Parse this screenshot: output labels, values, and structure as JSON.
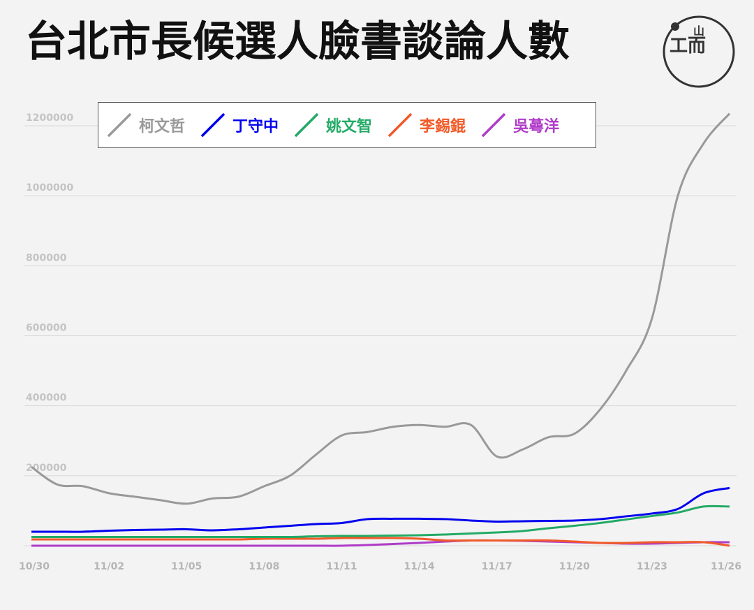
{
  "title": "台北市長候選人臉書談論人數",
  "logo": {
    "text_top": "山",
    "text_bottom": "工而",
    "icon": "initium-logo"
  },
  "chart_data": {
    "type": "line",
    "title": "台北市長候選人臉書談論人數",
    "xlabel": "",
    "ylabel": "",
    "ylim": [
      0,
      1200000
    ],
    "yticks": [
      200000,
      400000,
      600000,
      800000,
      1000000,
      1200000
    ],
    "ytick_labels": [
      "200000",
      "400000",
      "600000",
      "800000",
      "1000000",
      "1200000"
    ],
    "x": [
      "10/30",
      "10/31",
      "11/01",
      "11/02",
      "11/03",
      "11/04",
      "11/05",
      "11/06",
      "11/07",
      "11/08",
      "11/09",
      "11/10",
      "11/11",
      "11/12",
      "11/13",
      "11/14",
      "11/15",
      "11/16",
      "11/17",
      "11/18",
      "11/19",
      "11/20",
      "11/21",
      "11/22",
      "11/23",
      "11/24",
      "11/25",
      "11/26"
    ],
    "xtick_labels": [
      "10/30",
      "11/02",
      "11/05",
      "11/08",
      "11/11",
      "11/14",
      "11/17",
      "11/20",
      "11/23",
      "11/26"
    ],
    "grid": true,
    "legend_position": "top",
    "series": [
      {
        "name": "柯文哲",
        "color": "#999999",
        "values": [
          225000,
          175000,
          170000,
          150000,
          140000,
          130000,
          120000,
          135000,
          140000,
          170000,
          200000,
          260000,
          315000,
          325000,
          340000,
          345000,
          340000,
          345000,
          255000,
          275000,
          310000,
          320000,
          390000,
          500000,
          650000,
          1000000,
          1150000,
          1235000
        ]
      },
      {
        "name": "丁守中",
        "color": "#0000ee",
        "values": [
          40000,
          40000,
          40000,
          43000,
          45000,
          46000,
          47000,
          44000,
          47000,
          52000,
          57000,
          62000,
          65000,
          76000,
          77000,
          77000,
          76000,
          72000,
          69000,
          70000,
          71000,
          72000,
          76000,
          84000,
          92000,
          105000,
          150000,
          165000
        ]
      },
      {
        "name": "姚文智",
        "color": "#22aa66",
        "values": [
          25000,
          25000,
          25000,
          25000,
          25000,
          25000,
          25000,
          25000,
          25000,
          25000,
          25000,
          27000,
          28000,
          28000,
          29000,
          30000,
          32000,
          35000,
          38000,
          42000,
          50000,
          57000,
          65000,
          75000,
          85000,
          95000,
          112000,
          112000
        ]
      },
      {
        "name": "李錫錕",
        "color": "#f05a28",
        "values": [
          18000,
          18000,
          18000,
          18000,
          18000,
          18000,
          18000,
          18000,
          18000,
          20000,
          20000,
          20000,
          22000,
          22000,
          22000,
          20000,
          15000,
          15000,
          15000,
          15000,
          15000,
          12000,
          8000,
          8000,
          10000,
          10000,
          10000,
          0
        ]
      },
      {
        "name": "吳蕚洋",
        "color": "#b03cc8",
        "values": [
          0,
          0,
          0,
          0,
          0,
          0,
          0,
          0,
          0,
          0,
          0,
          0,
          0,
          2000,
          5000,
          8000,
          12000,
          15000,
          15000,
          14000,
          12000,
          10000,
          8000,
          6000,
          6000,
          8000,
          10000,
          10000
        ]
      }
    ]
  }
}
